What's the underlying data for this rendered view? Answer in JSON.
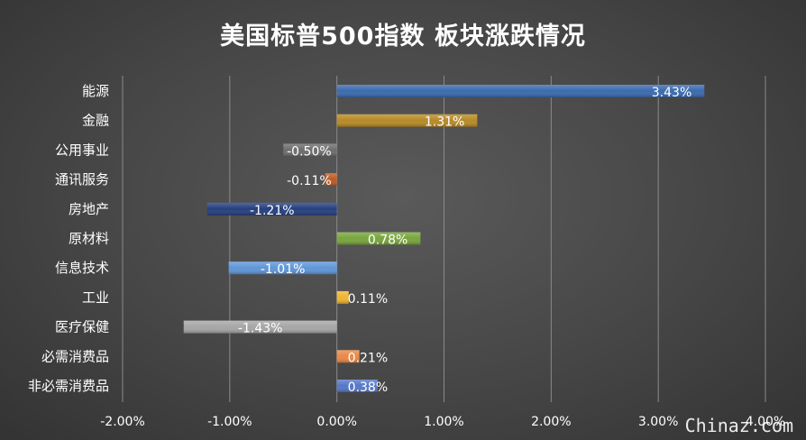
{
  "chart_data": {
    "type": "bar",
    "orientation": "horizontal",
    "title": "美国标普500指数 板块涨跌情况",
    "categories": [
      "能源",
      "金融",
      "公用事业",
      "通讯服务",
      "房地产",
      "原材料",
      "信息技术",
      "工业",
      "医疗保健",
      "必需消费品",
      "非必需消费品"
    ],
    "values": [
      3.43,
      1.31,
      -0.5,
      -0.11,
      -1.21,
      0.78,
      -1.01,
      0.11,
      -1.43,
      0.21,
      0.38
    ],
    "value_labels": [
      "3.43%",
      "1.31%",
      "-0.50%",
      "-0.11%",
      "-1.21%",
      "0.78%",
      "-1.01%",
      "0.11%",
      "-1.43%",
      "0.21%",
      "0.38%"
    ],
    "colors": [
      "#3a6aaf",
      "#b88a26",
      "#6d6d6d",
      "#bd5b23",
      "#253e7e",
      "#78a53c",
      "#5f96d9",
      "#efb530",
      "#a6a6a6",
      "#e88848",
      "#5577c8"
    ],
    "xlim": [
      -2.0,
      4.0
    ],
    "x_ticks": [
      "-2.00%",
      "-1.00%",
      "0.00%",
      "1.00%",
      "2.00%",
      "3.00%",
      "4.00%"
    ],
    "x_tick_values": [
      -2,
      -1,
      0,
      1,
      2,
      3,
      4
    ],
    "xlabel": "",
    "ylabel": "",
    "grid": true,
    "legend": "none"
  },
  "watermark": "Chinaz.com"
}
